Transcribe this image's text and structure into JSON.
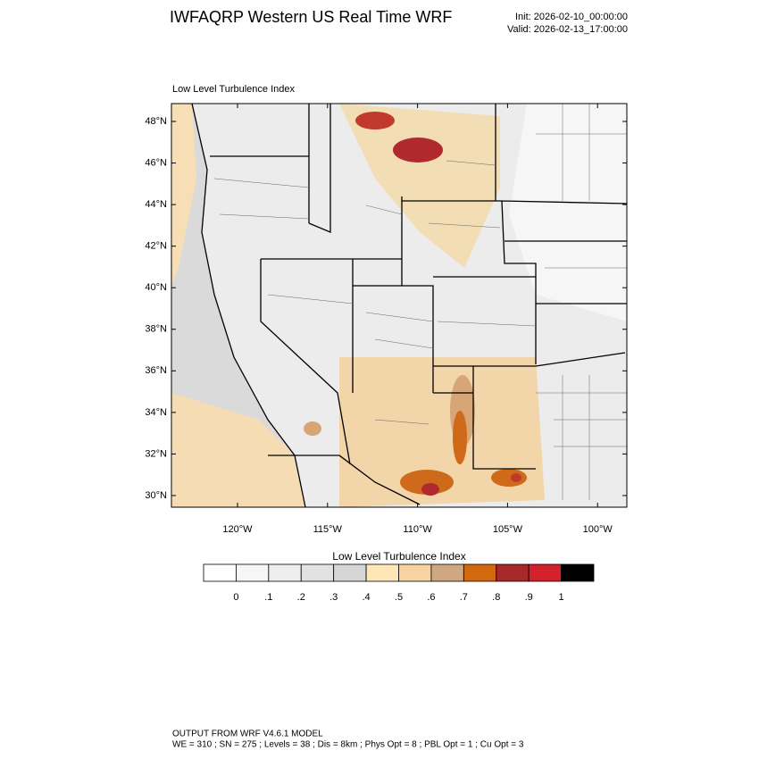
{
  "header": {
    "title": "IWFAQRP Western US Real Time WRF",
    "init": "Init: 2026-02-10_00:00:00",
    "valid": "Valid: 2026-02-13_17:00:00"
  },
  "map": {
    "subtitle": "Low Level Turbulence Index",
    "lat_labels": [
      "48°N",
      "46°N",
      "44°N",
      "42°N",
      "40°N",
      "38°N",
      "36°N",
      "34°N",
      "32°N",
      "30°N"
    ],
    "lon_labels": [
      "120°W",
      "115°W",
      "110°W",
      "105°W",
      "100°W"
    ]
  },
  "colorbar": {
    "title": "Low Level Turbulence Index",
    "colors": [
      "#ffffff",
      "#f6f6f6",
      "#eeeeee",
      "#e2e2e2",
      "#d6d6d6",
      "#ffe6b8",
      "#f7d3a2",
      "#cfa882",
      "#d2690f",
      "#a8292b",
      "#d3222b",
      "#000000"
    ],
    "labels": [
      "0",
      ".1",
      ".2",
      ".3",
      ".4",
      ".5",
      ".6",
      ".7",
      ".8",
      ".9",
      "1"
    ]
  },
  "footer": {
    "lines": [
      "OUTPUT FROM WRF V4.6.1 MODEL",
      "WE = 310 ; SN = 275 ; Levels = 38 ; Dis = 8km ; Phys Opt = 8 ; PBL Opt = 1 ; Cu Opt = 3"
    ]
  }
}
